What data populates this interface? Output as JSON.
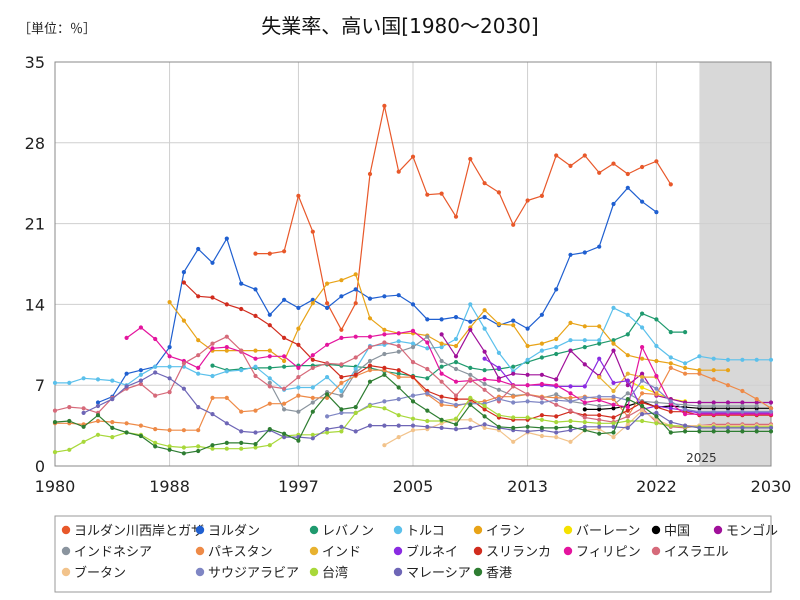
{
  "unit_label": "［単位：％］",
  "chart_data": {
    "type": "line",
    "title": "失業率、高い国[1980～2030]",
    "xlabel": "",
    "ylabel": "",
    "xlim": [
      1980,
      2030
    ],
    "ylim": [
      0,
      35
    ],
    "x_ticks": [
      1980,
      1988,
      1997,
      2005,
      2013,
      2022,
      2030
    ],
    "x_tick_labels": [
      "1980",
      "1988",
      "1997",
      "2005",
      "2013",
      "2022",
      "2030"
    ],
    "y_ticks": [
      0,
      7,
      14,
      21,
      28,
      35
    ],
    "y_tick_labels": [
      "0",
      "7",
      "14",
      "21",
      "28",
      "35"
    ],
    "grid": true,
    "legend_position": "bottom",
    "forecast_region": {
      "start": 2025,
      "end": 2030,
      "label": "2025"
    },
    "series": [
      {
        "name": "ヨルダン川西岸とガザ",
        "color": "#E8582A",
        "start": 1994,
        "values": [
          18.4,
          18.4,
          18.6,
          23.4,
          20.3,
          14.1,
          11.8,
          14.1,
          25.3,
          31.2,
          25.5,
          26.8,
          23.5,
          23.6,
          21.6,
          26.6,
          24.5,
          23.7,
          20.9,
          23.0,
          23.4,
          26.9,
          26.0,
          26.9,
          25.4,
          26.2,
          25.3,
          25.9,
          26.4,
          24.4
        ]
      },
      {
        "name": "ヨルダン",
        "color": "#1F5FD0",
        "start": 1983,
        "values": [
          5.5,
          6.0,
          8.0,
          8.3,
          8.6,
          10.3,
          16.8,
          18.8,
          17.6,
          19.7,
          15.8,
          15.3,
          13.1,
          14.4,
          13.7,
          14.4,
          13.7,
          14.7,
          15.3,
          14.5,
          14.7,
          14.8,
          14.0,
          12.7,
          12.7,
          12.9,
          12.5,
          12.9,
          12.2,
          12.6,
          11.9,
          13.1,
          15.3,
          18.3,
          18.5,
          19.0,
          22.7,
          24.1,
          22.9,
          22.0
        ]
      },
      {
        "name": "レバノン",
        "color": "#1F9A6E",
        "start": 1991,
        "values": [
          8.7,
          8.3,
          8.4,
          8.5,
          8.5,
          8.6,
          8.7,
          8.7,
          8.8,
          8.7,
          8.6,
          8.5,
          8.2,
          8.0,
          7.8,
          7.6,
          8.6,
          9.0,
          8.5,
          8.3,
          8.4,
          8.6,
          9.0,
          9.4,
          9.7,
          10.0,
          10.3,
          10.6,
          10.9,
          11.4,
          13.2,
          12.7,
          11.6,
          11.6
        ]
      },
      {
        "name": "トルコ",
        "color": "#5BC0EB",
        "start": 1980,
        "values": [
          7.2,
          7.2,
          7.6,
          7.5,
          7.4,
          7.0,
          7.9,
          8.6,
          8.6,
          8.6,
          8.0,
          7.8,
          8.2,
          8.3,
          8.6,
          7.6,
          6.6,
          6.8,
          6.8,
          7.7,
          6.5,
          8.4,
          10.4,
          10.5,
          10.8,
          10.6,
          10.2,
          10.3,
          11.0,
          14.0,
          11.9,
          9.8,
          8.2,
          9.2,
          10.0,
          10.3,
          10.9,
          10.9,
          10.9,
          13.7,
          13.1,
          12.0,
          10.4,
          9.4,
          8.9,
          9.5,
          9.3,
          9.2,
          9.2,
          9.2,
          9.2
        ]
      },
      {
        "name": "イラン",
        "color": "#E8A317",
        "start": 1988,
        "values": [
          14.2,
          12.6,
          10.9,
          10.0,
          10.0,
          10.0,
          10.0,
          10.0,
          9.1,
          11.9,
          14.1,
          15.8,
          16.1,
          16.6,
          12.8,
          11.8,
          11.5,
          11.5,
          11.3,
          10.6,
          10.4,
          12.0,
          13.5,
          12.3,
          12.2,
          10.4,
          10.6,
          11.0,
          12.4,
          12.1,
          12.1,
          10.6,
          9.6,
          9.3,
          9.1,
          8.9,
          8.5,
          8.3,
          8.3,
          8.3
        ]
      },
      {
        "name": "バーレーン",
        "color": "#F5E100",
        "start": 2020,
        "values": [
          7.4,
          6.8,
          6.3,
          5.8,
          5.6
        ]
      },
      {
        "name": "中国",
        "color": "#000000",
        "start": 2017,
        "values": [
          4.9,
          4.9,
          5.0,
          5.2,
          5.6,
          5.1,
          5.2,
          5.1,
          5.0,
          5.0,
          5.0,
          5.0,
          5.0,
          5.0
        ]
      },
      {
        "name": "モンゴル",
        "color": "#A0109A",
        "start": 2007,
        "values": [
          11.4,
          9.5,
          11.8,
          9.9,
          7.6,
          8.0,
          7.9,
          7.9,
          7.5,
          10.0,
          8.8,
          7.8,
          10.0,
          7.0,
          8.0,
          6.1,
          5.8,
          5.5,
          5.5,
          5.5,
          5.5,
          5.5,
          5.5,
          5.5
        ]
      },
      {
        "name": "インドネシア",
        "color": "#8A949E",
        "start": 1995,
        "values": [
          7.2,
          4.9,
          4.7,
          5.5,
          6.4,
          6.1,
          8.1,
          9.1,
          9.7,
          9.9,
          10.3,
          11.2,
          9.1,
          8.4,
          7.9,
          7.1,
          6.6,
          6.1,
          6.2,
          5.9,
          6.2,
          5.6,
          5.4,
          5.2,
          5.3,
          6.3,
          5.6,
          5.5,
          5.4,
          5.3,
          5.2,
          5.2,
          5.2,
          5.2,
          5.2
        ]
      },
      {
        "name": "パキスタン",
        "color": "#EE8A47",
        "start": 1980,
        "values": [
          3.7,
          3.7,
          3.6,
          3.9,
          3.8,
          3.7,
          3.5,
          3.2,
          3.1,
          3.1,
          3.1,
          5.9,
          5.9,
          4.7,
          4.8,
          5.4,
          5.4,
          6.1,
          5.9,
          5.9,
          7.2,
          7.8,
          8.3,
          8.3,
          7.7,
          7.7,
          6.2,
          5.3,
          5.2,
          5.5,
          5.6,
          6.0,
          6.0,
          6.2,
          6.0,
          5.9,
          5.9,
          6.0,
          5.8,
          5.8,
          4.3,
          6.3,
          6.2,
          8.5,
          8.0,
          8.0,
          7.5,
          7.0,
          6.5,
          5.8,
          5.0
        ]
      },
      {
        "name": "インド",
        "color": "#E8B230",
        "start": 2018,
        "values": [
          7.7,
          6.5,
          8.0,
          7.7,
          7.7
        ]
      },
      {
        "name": "ブルネイ",
        "color": "#8A2BE2",
        "start": 2010,
        "values": [
          9.3,
          8.5,
          7.0,
          7.0,
          7.0,
          6.9,
          6.9,
          6.9,
          9.3,
          7.2,
          7.4,
          4.9,
          5.2,
          5.0,
          4.8,
          4.6,
          4.6,
          4.6,
          4.6,
          4.6,
          4.6
        ]
      },
      {
        "name": "スリランカ",
        "color": "#D12C1E",
        "start": 1989,
        "values": [
          15.9,
          14.7,
          14.6,
          14.0,
          13.6,
          13.0,
          12.2,
          11.1,
          10.5,
          9.2,
          8.9,
          7.7,
          7.9,
          8.7,
          8.5,
          8.3,
          7.7,
          6.5,
          6.0,
          5.8,
          5.8,
          4.9,
          4.2,
          4.0,
          4.0,
          4.4,
          4.3,
          4.7,
          4.4,
          4.4,
          4.2,
          4.8,
          5.5,
          5.1,
          4.7,
          4.7,
          4.4,
          4.4,
          4.4,
          4.4,
          4.4,
          4.4
        ]
      },
      {
        "name": "フィリピン",
        "color": "#E4149E",
        "start": 1985,
        "values": [
          11.1,
          12.0,
          11.0,
          9.5,
          9.1,
          8.5,
          10.2,
          10.3,
          9.9,
          9.3,
          9.5,
          9.5,
          8.5,
          9.6,
          10.5,
          11.1,
          11.2,
          11.2,
          11.4,
          11.5,
          11.7,
          10.7,
          8.0,
          7.3,
          7.4,
          7.5,
          7.4,
          7.0,
          7.0,
          7.1,
          7.0,
          6.3,
          5.5,
          5.7,
          5.3,
          5.1,
          10.3,
          7.8,
          5.4,
          4.5,
          4.5,
          4.5,
          4.5,
          4.5,
          4.5,
          4.5
        ]
      },
      {
        "name": "イスラエル",
        "color": "#D66A7A",
        "start": 1980,
        "values": [
          4.8,
          5.1,
          5.0,
          4.6,
          5.9,
          6.7,
          7.1,
          6.1,
          6.4,
          8.9,
          9.6,
          10.6,
          11.2,
          10.0,
          7.8,
          6.9,
          6.7,
          7.7,
          8.5,
          8.9,
          8.8,
          9.4,
          10.3,
          10.7,
          10.4,
          9.0,
          8.4,
          7.3,
          6.1,
          7.5,
          6.6,
          5.6,
          6.9,
          6.2,
          5.9,
          5.3,
          4.8,
          4.2,
          4.0,
          3.8,
          4.3,
          5.0,
          3.8,
          3.4,
          3.3,
          3.5,
          3.6,
          3.6,
          3.6,
          3.6,
          3.6
        ]
      },
      {
        "name": "ブータン",
        "color": "#F2C38B",
        "start": 2003,
        "values": [
          1.8,
          2.5,
          3.1,
          3.2,
          3.7,
          4.0,
          4.0,
          3.3,
          3.1,
          2.1,
          2.9,
          2.6,
          2.5,
          2.1,
          3.1,
          3.2,
          2.5,
          3.6,
          4.8,
          4.0,
          3.5,
          3.5,
          3.5,
          3.5,
          3.5,
          3.5,
          3.5,
          3.5
        ]
      },
      {
        "name": "サウジアラビア",
        "color": "#7F86C4",
        "start": 1999,
        "values": [
          4.3,
          4.6,
          4.6,
          5.3,
          5.6,
          5.8,
          6.1,
          6.3,
          5.6,
          5.3,
          5.4,
          5.4,
          5.8,
          5.5,
          5.6,
          5.5,
          5.7,
          5.6,
          5.9,
          6.0,
          6.0,
          5.7,
          7.4,
          6.7,
          5.6,
          4.9,
          4.7,
          4.7,
          4.7,
          4.7,
          4.7,
          4.7
        ]
      },
      {
        "name": "台湾",
        "color": "#A8D83A",
        "start": 1980,
        "values": [
          1.2,
          1.4,
          2.1,
          2.7,
          2.5,
          2.9,
          2.7,
          2.0,
          1.7,
          1.6,
          1.7,
          1.5,
          1.5,
          1.5,
          1.6,
          1.8,
          2.6,
          2.7,
          2.7,
          2.9,
          3.0,
          4.6,
          5.2,
          5.0,
          4.4,
          4.1,
          3.9,
          3.9,
          4.1,
          5.9,
          5.2,
          4.4,
          4.2,
          4.2,
          4.0,
          3.8,
          3.9,
          3.8,
          3.7,
          3.7,
          3.9,
          3.9,
          3.7,
          3.5,
          3.4,
          3.4,
          3.4,
          3.4,
          3.4,
          3.4,
          3.4
        ]
      },
      {
        "name": "マレーシア",
        "color": "#6E66B6",
        "start": 1982,
        "values": [
          4.6,
          5.2,
          5.8,
          6.9,
          7.4,
          8.1,
          7.6,
          6.7,
          5.1,
          4.5,
          3.7,
          3.0,
          2.9,
          3.1,
          2.5,
          2.5,
          2.4,
          3.2,
          3.4,
          3.0,
          3.5,
          3.5,
          3.5,
          3.5,
          3.4,
          3.3,
          3.2,
          3.3,
          3.6,
          3.3,
          3.1,
          3.0,
          3.1,
          2.9,
          3.1,
          3.4,
          3.4,
          3.4,
          3.3,
          4.5,
          4.6,
          3.8,
          3.5,
          3.3,
          3.3,
          3.3,
          3.3,
          3.3,
          3.3
        ]
      },
      {
        "name": "香港",
        "color": "#2E7D32",
        "start": 1980,
        "values": [
          3.8,
          3.9,
          3.4,
          4.4,
          3.3,
          2.9,
          2.6,
          1.7,
          1.4,
          1.1,
          1.3,
          1.8,
          2.0,
          2.0,
          1.9,
          3.2,
          2.8,
          2.2,
          4.7,
          6.2,
          4.9,
          5.1,
          7.3,
          7.9,
          6.8,
          5.6,
          4.8,
          4.0,
          3.6,
          5.3,
          4.3,
          3.4,
          3.3,
          3.4,
          3.3,
          3.3,
          3.4,
          3.1,
          2.8,
          2.9,
          5.8,
          5.2,
          4.3,
          2.9,
          3.0,
          3.0,
          3.0,
          3.0,
          3.0,
          3.0,
          3.0
        ]
      }
    ]
  }
}
